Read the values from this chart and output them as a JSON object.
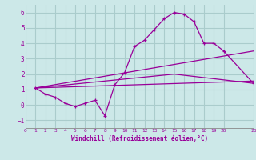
{
  "background_color": "#cce8e8",
  "grid_color": "#aacccc",
  "line_color": "#990099",
  "marker_color": "#990099",
  "xlabel": "Windchill (Refroidissement éolien,°C)",
  "xlim": [
    0,
    23
  ],
  "ylim": [
    -1.5,
    6.5
  ],
  "xticks": [
    0,
    1,
    2,
    3,
    4,
    5,
    6,
    7,
    8,
    9,
    10,
    11,
    12,
    13,
    14,
    15,
    16,
    17,
    18,
    19,
    20,
    23
  ],
  "yticks": [
    -1,
    0,
    1,
    2,
    3,
    4,
    5,
    6
  ],
  "series1_x": [
    1,
    2,
    3,
    4,
    5,
    6,
    7,
    8,
    9,
    10,
    11,
    12,
    13,
    14,
    15,
    16,
    17,
    18,
    19,
    20,
    23
  ],
  "series1_y": [
    1.1,
    0.7,
    0.5,
    0.1,
    -0.1,
    0.1,
    0.3,
    -0.7,
    1.3,
    2.1,
    3.8,
    4.2,
    4.9,
    5.6,
    6.0,
    5.9,
    5.4,
    4.0,
    4.0,
    3.5,
    1.4
  ],
  "series2_x": [
    1,
    23
  ],
  "series2_y": [
    1.1,
    3.5
  ],
  "series3_x": [
    1,
    15,
    23
  ],
  "series3_y": [
    1.1,
    2.0,
    1.4
  ],
  "series4_x": [
    1,
    23
  ],
  "series4_y": [
    1.1,
    1.55
  ]
}
